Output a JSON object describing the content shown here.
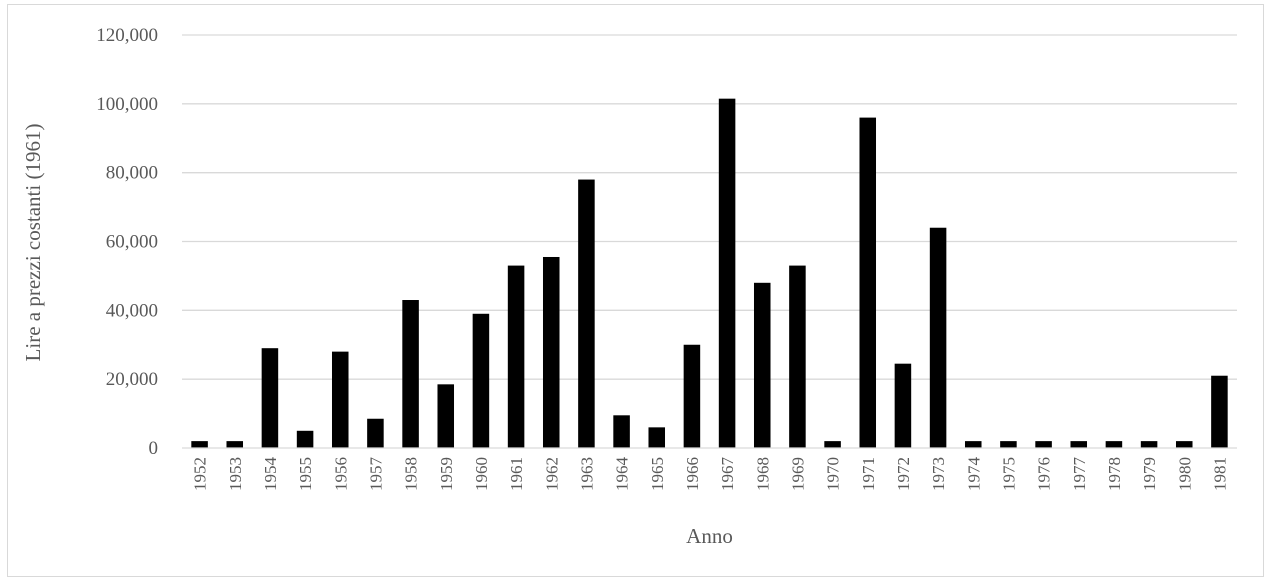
{
  "chart_data": {
    "type": "bar",
    "title": "",
    "xlabel": "Anno",
    "ylabel": "Lire a prezzi costanti (1961)",
    "ylim": [
      0,
      120000
    ],
    "yticks": [
      0,
      20000,
      40000,
      60000,
      80000,
      100000,
      120000
    ],
    "ytick_labels": [
      "0",
      "20,000",
      "40,000",
      "60,000",
      "80,000",
      "100,000",
      "120,000"
    ],
    "grid": "horizontal",
    "legend": "none",
    "bar_color": "#000000",
    "gridline_color": "#d9d9d9",
    "categories": [
      "1952",
      "1953",
      "1954",
      "1955",
      "1956",
      "1957",
      "1958",
      "1959",
      "1960",
      "1961",
      "1962",
      "1963",
      "1964",
      "1965",
      "1966",
      "1967",
      "1968",
      "1969",
      "1970",
      "1971",
      "1972",
      "1973",
      "1974",
      "1975",
      "1976",
      "1977",
      "1978",
      "1979",
      "1980",
      "1981"
    ],
    "values": [
      2000,
      2000,
      29000,
      5000,
      28000,
      8500,
      43000,
      18500,
      39000,
      53000,
      55500,
      78000,
      9500,
      6000,
      30000,
      101500,
      48000,
      53000,
      2000,
      96000,
      24500,
      64000,
      2000,
      2000,
      2000,
      2000,
      2000,
      2000,
      2000,
      21000
    ]
  }
}
